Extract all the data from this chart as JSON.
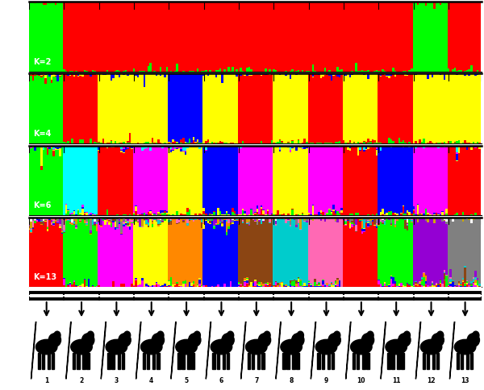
{
  "breed_boundaries": [
    0,
    17,
    34,
    51,
    68,
    85,
    102,
    119,
    136,
    153,
    170,
    187,
    204,
    220
  ],
  "breed_labels": [
    "1",
    "2",
    "3",
    "4",
    "5",
    "6",
    "7",
    "8",
    "9",
    "10",
    "11",
    "12",
    "13"
  ],
  "k2_colors": [
    "#00ff00",
    "#ff0000"
  ],
  "k4_colors": [
    "#00ff00",
    "#ff0000",
    "#ffff00",
    "#0000ff"
  ],
  "k6_colors": [
    "#00ff00",
    "#ff0000",
    "#ffff00",
    "#0000ff",
    "#ff00ff",
    "#00ffff"
  ],
  "k13_colors": [
    "#ff0000",
    "#ff00ff",
    "#0000ff",
    "#ffff00",
    "#00ff00",
    "#ff8800",
    "#8b4513",
    "#00cccc",
    "#ff69b4",
    "#9400d3",
    "#808080",
    "#ccaa00",
    "#ffffff"
  ],
  "k2_dominant": [
    0,
    1,
    1,
    1,
    1,
    1,
    1,
    1,
    1,
    1,
    1,
    0,
    1
  ],
  "k4_dominant": [
    0,
    1,
    2,
    2,
    3,
    2,
    1,
    2,
    1,
    2,
    1,
    2,
    2
  ],
  "k6_dominant": [
    0,
    5,
    1,
    4,
    2,
    3,
    4,
    2,
    4,
    1,
    3,
    4,
    1
  ],
  "k13_dominant": [
    0,
    4,
    1,
    3,
    5,
    2,
    6,
    7,
    8,
    0,
    4,
    9,
    10
  ],
  "breed_sizes": [
    17,
    17,
    17,
    17,
    17,
    17,
    17,
    17,
    17,
    17,
    17,
    17,
    16
  ],
  "fig_width": 6.0,
  "fig_height": 4.84,
  "dpi": 100
}
